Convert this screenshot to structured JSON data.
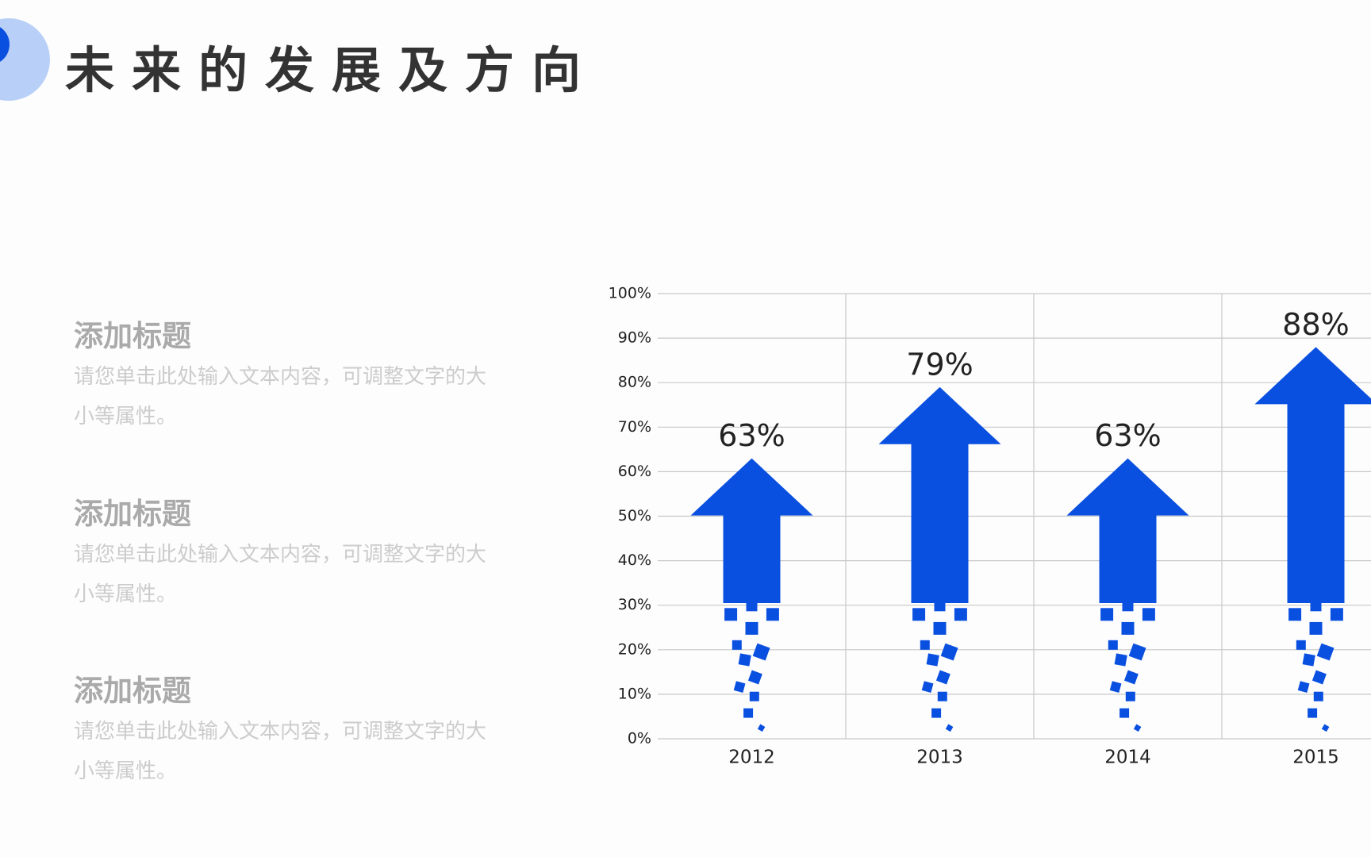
{
  "header": {
    "title": "未来的发展及方向"
  },
  "items": [
    {
      "title": "添加标题",
      "body": "请您单击此处输入文本内容，可调整文字的大小等属性。"
    },
    {
      "title": "添加标题",
      "body": "请您单击此处输入文本内容，可调整文字的大小等属性。"
    },
    {
      "title": "添加标题",
      "body": "请您单击此处输入文本内容，可调整文字的大小等属性。"
    }
  ],
  "chart_data": {
    "type": "bar",
    "categories": [
      "2012",
      "2013",
      "2014",
      "2015"
    ],
    "values": [
      63,
      79,
      63,
      88
    ],
    "value_labels": [
      "63%",
      "79%",
      "63%",
      "88%"
    ],
    "color": "#0a50e0",
    "ylim": [
      0,
      100
    ],
    "yticks": [
      {
        "value": 0,
        "label": "0%"
      },
      {
        "value": 10,
        "label": "10%"
      },
      {
        "value": 20,
        "label": "20%"
      },
      {
        "value": 30,
        "label": "30%"
      },
      {
        "value": 40,
        "label": "40%"
      },
      {
        "value": 50,
        "label": "50%"
      },
      {
        "value": 60,
        "label": "60%"
      },
      {
        "value": 70,
        "label": "70%"
      },
      {
        "value": 80,
        "label": "80%"
      },
      {
        "value": 90,
        "label": "90%"
      },
      {
        "value": 100,
        "label": "100%"
      }
    ],
    "grid": true
  }
}
